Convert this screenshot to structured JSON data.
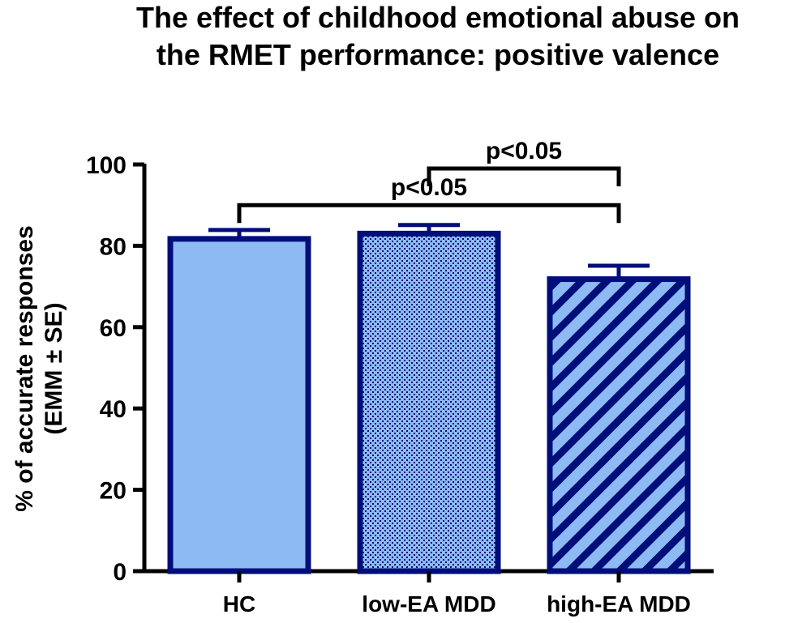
{
  "chart_data": {
    "type": "bar",
    "title": "The effect of childhood emotional abuse on the RMET performance: positive valence",
    "title_lines": [
      "The effect of childhood emotional abuse on",
      "the RMET performance: positive valence"
    ],
    "xlabel": "",
    "ylabel": "% of accurate responses (EMM ± SE)",
    "ylabel_lines": [
      "% of accurate responses",
      "(EMM ± SE)"
    ],
    "ylim": [
      0,
      100
    ],
    "yticks": [
      0,
      20,
      40,
      60,
      80,
      100
    ],
    "grid": false,
    "categories": [
      "HC",
      "low-EA MDD",
      "high-EA MDD"
    ],
    "values": [
      81.7,
      83.0,
      71.8
    ],
    "errors": [
      2.2,
      2.1,
      3.3
    ],
    "patterns": [
      "solid",
      "dots",
      "diagonal-stripes"
    ],
    "colors": {
      "bar_fill": "#8ebaf3",
      "bar_edge": "#000e7a",
      "axis": "#000000"
    },
    "annotations": [
      {
        "text": "p<0.05",
        "from": "HC",
        "to": "high-EA MDD",
        "level": 90
      },
      {
        "text": "p<0.05",
        "from": "low-EA MDD",
        "to": "high-EA MDD",
        "level": 99
      }
    ]
  }
}
